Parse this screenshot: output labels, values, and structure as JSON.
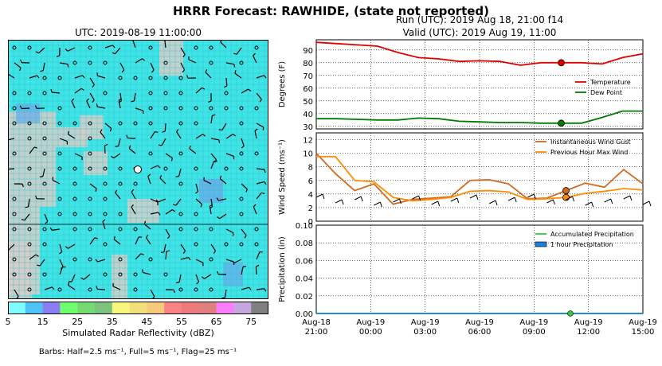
{
  "title": "HRRR Forecast: RAWHIDE, (state not reported)",
  "map": {
    "title": "UTC: 2019-08-19 11:00:00",
    "colorbar_label": "Simulated Radar Reflectivity (dBZ)",
    "colorbar_ticks": [
      "5",
      "15",
      "25",
      "35",
      "45",
      "55",
      "65",
      "75"
    ],
    "colorbar_colors": [
      "#80fcfc",
      "#4fc3f7",
      "#8b7df2",
      "#6eff6e",
      "#74db74",
      "#7bc47b",
      "#f7f77c",
      "#f2e07a",
      "#f6c97d",
      "#fb8282",
      "#ec7b7b",
      "#e07f7f",
      "#fc7efc",
      "#c6a6e0",
      "#808080"
    ],
    "barbs_note": "Barbs: Half=2.5 ms⁻¹, Full=5 ms⁻¹, Flag=25 ms⁻¹"
  },
  "header": {
    "run": "Run (UTC): 2019 Aug 18, 21:00 f14",
    "valid": "Valid (UTC): 2019 Aug 19, 11:00"
  },
  "chart_data": [
    {
      "type": "line",
      "ylabel": "Degrees (F)",
      "ylim": [
        28,
        98
      ],
      "yticks": [
        30,
        40,
        50,
        60,
        70,
        80,
        90
      ],
      "legend": "right",
      "series": [
        {
          "name": "Temperature",
          "color": "#e00000",
          "values": [
            96,
            95,
            94,
            93,
            88,
            84,
            83,
            81,
            81.5,
            81,
            78,
            80,
            80,
            80,
            79,
            84,
            87
          ]
        },
        {
          "name": "Dew Point",
          "color": "#007a00",
          "values": [
            36,
            36,
            35.5,
            35,
            35,
            36.5,
            36,
            34,
            33.5,
            33,
            33,
            32.5,
            32.5,
            32.5,
            37,
            42,
            42
          ]
        }
      ],
      "marker_index": 12
    },
    {
      "type": "line",
      "ylabel": "Wind Speed (ms⁻¹)",
      "ylim": [
        0,
        13
      ],
      "yticks": [
        0,
        2,
        4,
        6,
        8,
        10,
        12
      ],
      "legend": "top-right",
      "series": [
        {
          "name": "Instantaneous Wind Gust",
          "color": "#d2691e",
          "values": [
            10,
            7,
            4.5,
            5.5,
            2.5,
            3.2,
            3.4,
            3.6,
            6,
            6.1,
            5.5,
            3.3,
            3.4,
            4.5,
            5.6,
            5,
            7.6,
            5.5
          ]
        },
        {
          "name": "Previous Hour Max Wind",
          "color": "#ff8c00",
          "values": [
            9.5,
            9.5,
            6,
            5.8,
            3.5,
            3,
            3.2,
            3.5,
            4.4,
            4.5,
            4.3,
            3.2,
            3.3,
            3.5,
            4.1,
            4.4,
            4.8,
            4.6
          ]
        }
      ],
      "marker_index": 13
    },
    {
      "type": "line",
      "ylabel": "Precipitation (in)",
      "ylim": [
        0,
        0.1
      ],
      "yticks": [
        "0.00",
        "0.02",
        "0.04",
        "0.06",
        "0.08",
        "0.10"
      ],
      "legend": "top-right",
      "series": [
        {
          "name": "Accumulated Precipitation",
          "color": "#33cc33",
          "values": [
            0,
            0,
            0,
            0,
            0,
            0,
            0,
            0,
            0,
            0,
            0,
            0,
            0,
            0,
            0,
            0,
            0,
            0,
            0
          ]
        },
        {
          "name": "1 hour Precipitation",
          "color": "#1e7fd6",
          "values": [
            0,
            0,
            0,
            0,
            0,
            0,
            0,
            0,
            0,
            0,
            0,
            0,
            0,
            0,
            0,
            0,
            0,
            0,
            0
          ]
        }
      ],
      "marker_index": 14,
      "xlabels": [
        [
          "Aug-18",
          "21:00"
        ],
        [
          "Aug-19",
          "00:00"
        ],
        [
          "Aug-19",
          "03:00"
        ],
        [
          "Aug-19",
          "06:00"
        ],
        [
          "Aug-19",
          "09:00"
        ],
        [
          "Aug-19",
          "12:00"
        ],
        [
          "Aug-19",
          "15:00"
        ]
      ]
    }
  ]
}
